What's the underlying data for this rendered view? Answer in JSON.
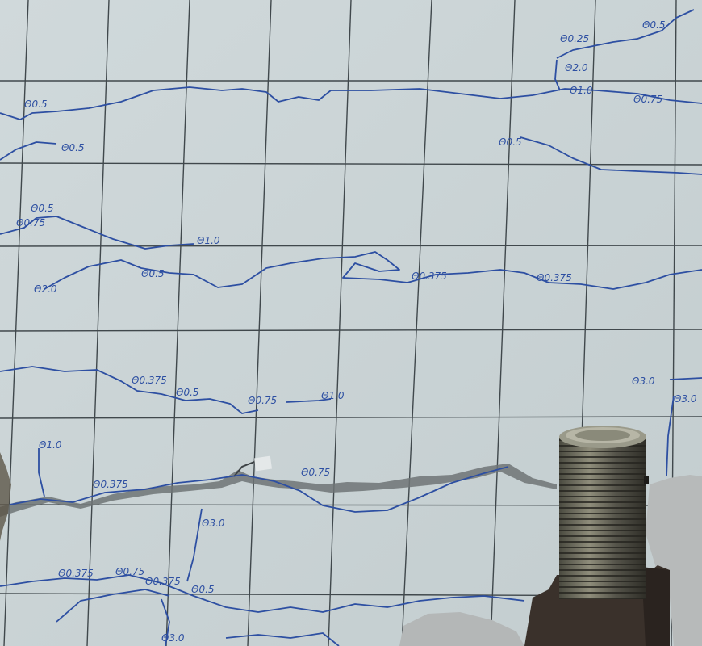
{
  "colors": {
    "surface": "#cdd7d9",
    "grid": "#3d4448",
    "crack_ink": "#2c4fa0",
    "fracture": "#4a4f52",
    "rod_dark": "#3b3a33",
    "rod_light": "#8a8876",
    "plate": "#3a322c",
    "rubble": "#b9bcbc"
  },
  "labels": [
    "Θ0.5",
    "Θ0.5",
    "Θ0.5",
    "Θ0.5",
    "Θ0.5",
    "Θ0.5",
    "Θ0.5",
    "Θ0.5",
    "Θ0.25",
    "Θ2.0",
    "Θ0.375",
    "Θ0.375",
    "Θ0.375",
    "Θ0.375",
    "Θ0.375",
    "Θ0.375",
    "Θ0.75",
    "Θ0.75",
    "Θ0.75",
    "Θ0.75",
    "Θ0.75",
    "Θ1.0",
    "Θ1.0",
    "Θ1.0",
    "Θ1.0",
    "Θ2.0",
    "Θ3.0",
    "Θ3.0",
    "Θ3.0",
    "Θ3.0"
  ]
}
